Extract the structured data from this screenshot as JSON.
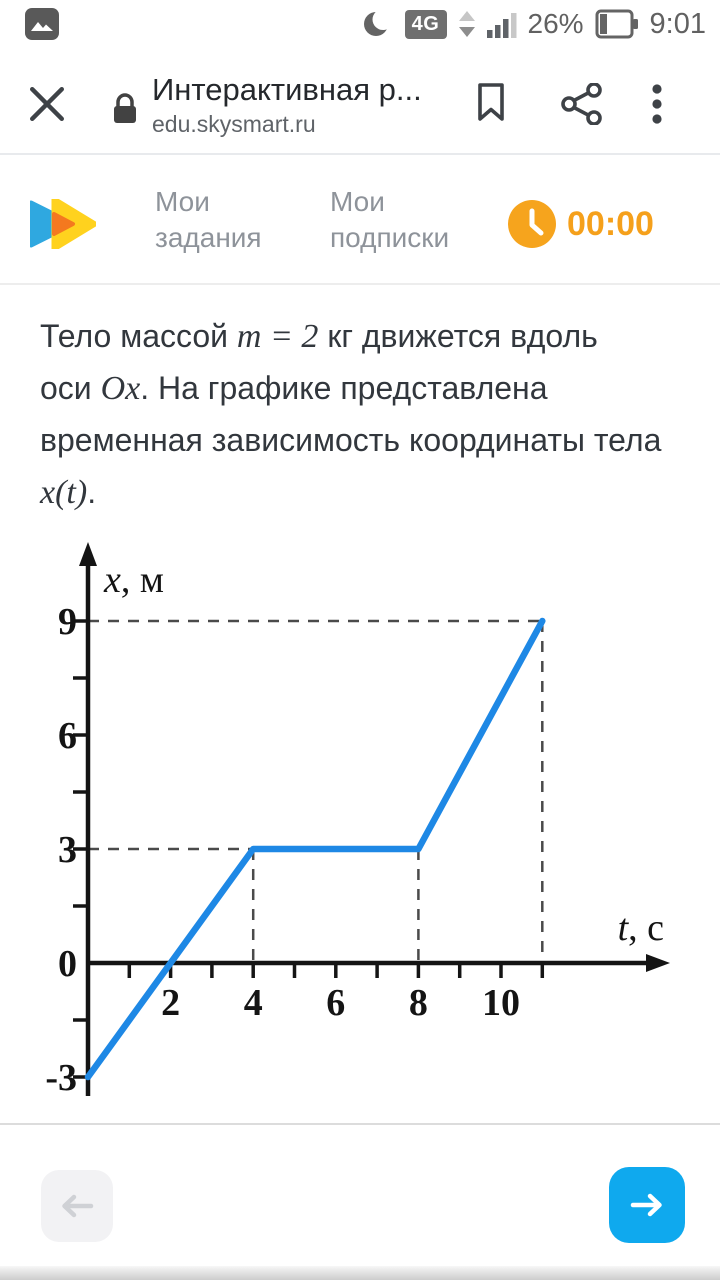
{
  "status_bar": {
    "time": "9:01",
    "battery": "26%",
    "network": "4G"
  },
  "browser": {
    "title": "Интерактивная р...",
    "url": "edu.skysmart.ru"
  },
  "header": {
    "tabs": [
      {
        "line1": "Мои",
        "line2": "задания"
      },
      {
        "line1": "Мои",
        "line2": "подписки"
      }
    ],
    "timer": "00:00"
  },
  "problem": {
    "lines": [
      [
        {
          "t": "Тело массой "
        },
        {
          "t": "m = 2",
          "math": true
        },
        {
          "t": " кг движется вдоль"
        }
      ],
      [
        {
          "t": "оси "
        },
        {
          "t": "Ox",
          "math": true
        },
        {
          "t": ". На графике представлена"
        }
      ],
      [
        {
          "t": "временная зависимость координаты тела"
        }
      ],
      [
        {
          "t": "x(t)",
          "math": true
        },
        {
          "t": "."
        }
      ]
    ]
  },
  "chart_data": {
    "type": "line",
    "title": "",
    "xlabel": "t, с",
    "ylabel": "x, м",
    "series": [
      {
        "name": "x(t)",
        "x": [
          0,
          4,
          8,
          11
        ],
        "y": [
          -3,
          3,
          3,
          9
        ]
      }
    ],
    "x_ticks": [
      1,
      2,
      3,
      4,
      5,
      6,
      7,
      8,
      9,
      10,
      11
    ],
    "x_tick_labels": [
      2,
      4,
      6,
      8,
      10
    ],
    "y_ticks": [
      -3,
      -1.5,
      1.5,
      3,
      4.5,
      6,
      7.5,
      9
    ],
    "y_tick_labels": [
      -3,
      0,
      3,
      6,
      9
    ],
    "xlim": [
      0,
      14
    ],
    "ylim": [
      -4,
      11.5
    ],
    "grid": false,
    "guides": [
      {
        "x": 4,
        "y": 3,
        "h": true,
        "v": true
      },
      {
        "x": 8,
        "y": 3,
        "h": false,
        "v": true
      },
      {
        "x": 11,
        "y": 9,
        "h": true,
        "v": true
      }
    ],
    "line_color": "#1E88E5",
    "guide_color": "#4a4a4a"
  },
  "icons": {
    "gallery": "photo-notification",
    "moon": "do-not-disturb-crescent",
    "signal": "signal-bars-3of4",
    "battery": "battery-horizontal-26",
    "close": "close-x",
    "lock": "padlock-secure",
    "bookmark": "bookmark-outline",
    "share": "share-nodes",
    "menu": "three-dot-menu",
    "logo": "skysmart-double-play-triangles",
    "clock": "timer-clock",
    "prev": "arrow-left",
    "next": "arrow-right"
  },
  "colors": {
    "accent_blue": "#0FA9EE",
    "timer_orange": "#F5A01B",
    "line_blue": "#1E88E5",
    "logo_blue": "#2FA8E0",
    "logo_yellow": "#FFD21E",
    "logo_orange": "#F4791F"
  }
}
